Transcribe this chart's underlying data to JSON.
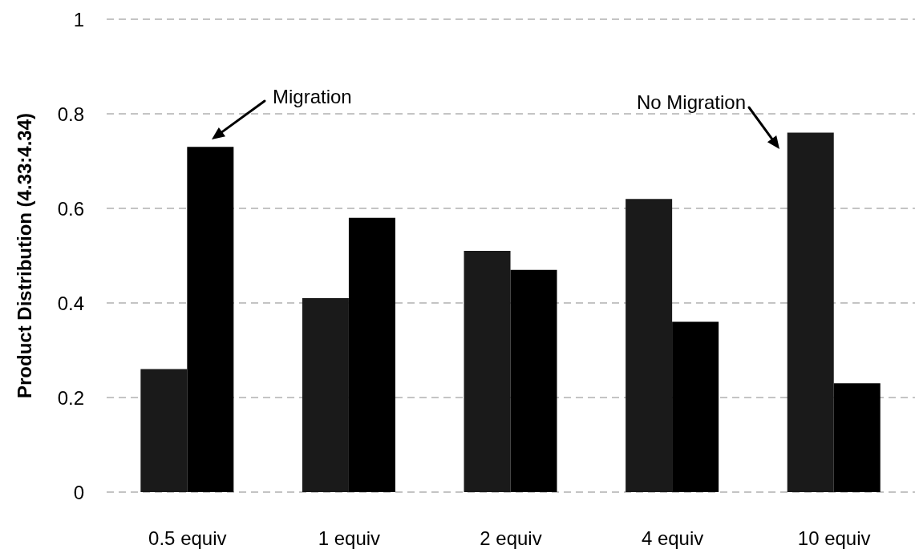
{
  "chart_data": {
    "type": "bar",
    "ylabel": "Product Distribution (4.33:4.34)",
    "categories": [
      "0.5 equiv",
      "1 equiv",
      "2 equiv",
      "4 equiv",
      "10 equiv"
    ],
    "series": [
      {
        "color": "#1a1a1a",
        "values": [
          0.26,
          0.41,
          0.51,
          0.62,
          0.76
        ]
      },
      {
        "color": "#000000",
        "values": [
          0.73,
          0.58,
          0.47,
          0.36,
          0.23
        ]
      }
    ],
    "ylim": [
      0,
      1
    ],
    "yticks": [
      0,
      0.2,
      0.4,
      0.6,
      0.8,
      1
    ],
    "grid": "y",
    "annotations": [
      "Migration",
      "No Migration"
    ]
  }
}
